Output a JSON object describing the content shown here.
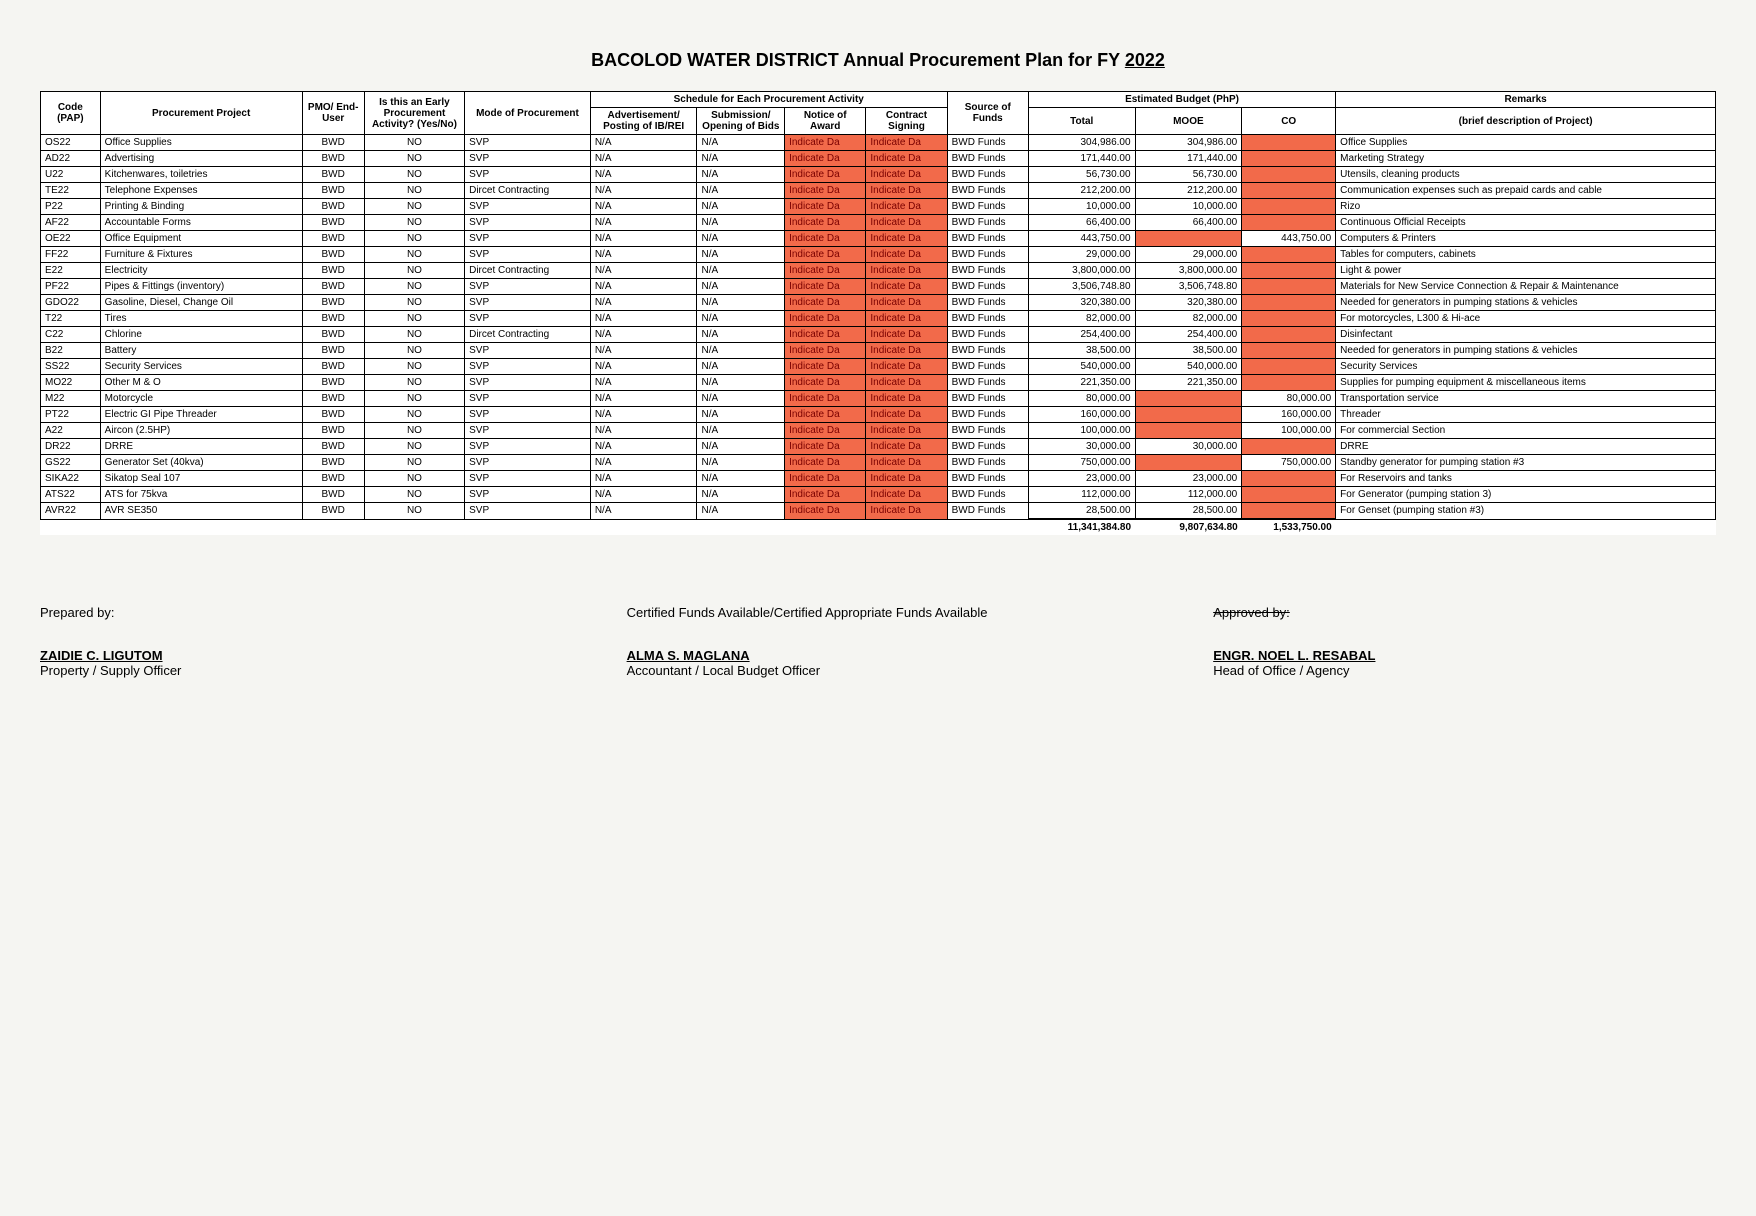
{
  "title_prefix": "BACOLOD WATER DISTRICT Annual Procurement Plan for FY",
  "title_year": "2022",
  "headers": {
    "code": "Code (PAP)",
    "project": "Procurement Project",
    "pmo": "PMO/ End-User",
    "early": "Is this an Early Procurement Activity? (Yes/No)",
    "mode": "Mode of Procurement",
    "schedule": "Schedule for Each Procurement Activity",
    "sched_ad": "Advertisement/ Posting of IB/REI",
    "sched_sub": "Submission/ Opening of Bids",
    "sched_notice": "Notice of Award",
    "sched_contract": "Contract Signing",
    "source": "Source of Funds",
    "budget": "Estimated Budget (PhP)",
    "total": "Total",
    "mooe": "MOOE",
    "co": "CO",
    "remarks": "Remarks",
    "remarks_sub": "(brief description of Project)"
  },
  "common": {
    "pmo": "BWD",
    "early": "NO",
    "na": "N/A",
    "indicate": "Indicate Da",
    "source": "BWD Funds"
  },
  "rows": [
    {
      "code": "OS22",
      "project": "Office Supplies",
      "mode": "SVP",
      "total": "304,986.00",
      "mooe": "304,986.00",
      "co": "",
      "remarks": "Office Supplies"
    },
    {
      "code": "AD22",
      "project": "Advertising",
      "mode": "SVP",
      "total": "171,440.00",
      "mooe": "171,440.00",
      "co": "",
      "remarks": "Marketing Strategy"
    },
    {
      "code": "U22",
      "project": "Kitchenwares, toiletries",
      "mode": "SVP",
      "total": "56,730.00",
      "mooe": "56,730.00",
      "co": "",
      "remarks": "Utensils, cleaning products"
    },
    {
      "code": "TE22",
      "project": "Telephone Expenses",
      "mode": "Dircet Contracting",
      "total": "212,200.00",
      "mooe": "212,200.00",
      "co": "",
      "remarks": "Communication expenses such as prepaid cards and cable"
    },
    {
      "code": "P22",
      "project": "Printing & Binding",
      "mode": "SVP",
      "total": "10,000.00",
      "mooe": "10,000.00",
      "co": "",
      "remarks": "Rizo"
    },
    {
      "code": "AF22",
      "project": "Accountable Forms",
      "mode": "SVP",
      "total": "66,400.00",
      "mooe": "66,400.00",
      "co": "",
      "remarks": "Continuous Official Receipts"
    },
    {
      "code": "OE22",
      "project": "Office Equipment",
      "mode": "SVP",
      "total": "443,750.00",
      "mooe": "",
      "co": "443,750.00",
      "remarks": "Computers & Printers"
    },
    {
      "code": "FF22",
      "project": "Furniture & Fixtures",
      "mode": "SVP",
      "total": "29,000.00",
      "mooe": "29,000.00",
      "co": "",
      "remarks": "Tables for computers, cabinets"
    },
    {
      "code": "E22",
      "project": "Electricity",
      "mode": "Dircet Contracting",
      "total": "3,800,000.00",
      "mooe": "3,800,000.00",
      "co": "",
      "remarks": "Light & power"
    },
    {
      "code": "PF22",
      "project": "Pipes & Fittings (inventory)",
      "mode": "SVP",
      "total": "3,506,748.80",
      "mooe": "3,506,748.80",
      "co": "",
      "remarks": "Materials for New Service Connection & Repair & Maintenance"
    },
    {
      "code": "GDO22",
      "project": "Gasoline, Diesel, Change Oil",
      "mode": "SVP",
      "total": "320,380.00",
      "mooe": "320,380.00",
      "co": "",
      "remarks": "Needed for generators in pumping stations & vehicles"
    },
    {
      "code": "T22",
      "project": "Tires",
      "mode": "SVP",
      "total": "82,000.00",
      "mooe": "82,000.00",
      "co": "",
      "remarks": "For motorcycles, L300 & Hi-ace"
    },
    {
      "code": "C22",
      "project": "Chlorine",
      "mode": "Dircet Contracting",
      "total": "254,400.00",
      "mooe": "254,400.00",
      "co": "",
      "remarks": "Disinfectant"
    },
    {
      "code": "B22",
      "project": "Battery",
      "mode": "SVP",
      "total": "38,500.00",
      "mooe": "38,500.00",
      "co": "",
      "remarks": "Needed for generators in pumping stations & vehicles"
    },
    {
      "code": "SS22",
      "project": "Security Services",
      "mode": "SVP",
      "total": "540,000.00",
      "mooe": "540,000.00",
      "co": "",
      "remarks": "Security Services"
    },
    {
      "code": "MO22",
      "project": "Other M & O",
      "mode": "SVP",
      "total": "221,350.00",
      "mooe": "221,350.00",
      "co": "",
      "remarks": "Supplies for pumping equipment & miscellaneous items"
    },
    {
      "code": "M22",
      "project": "Motorcycle",
      "mode": "SVP",
      "total": "80,000.00",
      "mooe": "",
      "co": "80,000.00",
      "remarks": "Transportation service"
    },
    {
      "code": "PT22",
      "project": "Electric GI Pipe Threader",
      "mode": "SVP",
      "total": "160,000.00",
      "mooe": "",
      "co": "160,000.00",
      "remarks": "Threader"
    },
    {
      "code": "A22",
      "project": "Aircon (2.5HP)",
      "mode": "SVP",
      "total": "100,000.00",
      "mooe": "",
      "co": "100,000.00",
      "remarks": "For commercial Section"
    },
    {
      "code": "DR22",
      "project": "DRRE",
      "mode": "SVP",
      "total": "30,000.00",
      "mooe": "30,000.00",
      "co": "",
      "remarks": "DRRE"
    },
    {
      "code": "GS22",
      "project": "Generator Set (40kva)",
      "mode": "SVP",
      "total": "750,000.00",
      "mooe": "",
      "co": "750,000.00",
      "remarks": "Standby generator for pumping station #3"
    },
    {
      "code": "SIKA22",
      "project": "Sikatop Seal 107",
      "mode": "SVP",
      "total": "23,000.00",
      "mooe": "23,000.00",
      "co": "",
      "remarks": "For Reservoirs and tanks"
    },
    {
      "code": "ATS22",
      "project": "ATS for 75kva",
      "mode": "SVP",
      "total": "112,000.00",
      "mooe": "112,000.00",
      "co": "",
      "remarks": "For Generator (pumping station 3)"
    },
    {
      "code": "AVR22",
      "project": "AVR SE350",
      "mode": "SVP",
      "total": "28,500.00",
      "mooe": "28,500.00",
      "co": "",
      "remarks": "For Genset (pumping station #3)"
    }
  ],
  "totals": {
    "total": "11,341,384.80",
    "mooe": "9,807,634.80",
    "co": "1,533,750.00"
  },
  "sig1": {
    "label": "Prepared by:",
    "name": "ZAIDIE C. LIGUTOM",
    "title": "Property / Supply Officer"
  },
  "sig2": {
    "label": "Certified Funds Available/Certified Appropriate Funds Available",
    "name": "ALMA S. MAGLANA",
    "title": "Accountant / Local Budget Officer"
  },
  "sig3": {
    "label": "Approved by:",
    "name": "ENGR. NOEL L. RESABAL",
    "title": "Head of Office / Agency"
  }
}
